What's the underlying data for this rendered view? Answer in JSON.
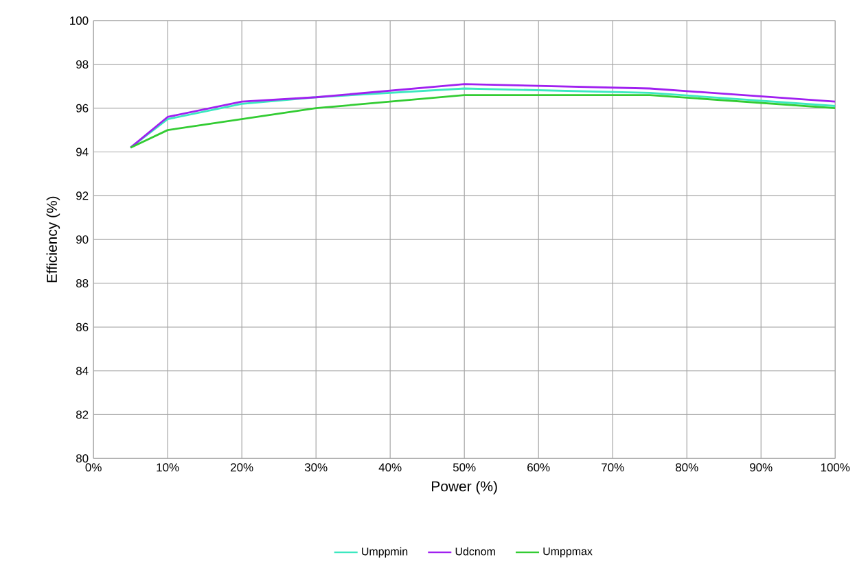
{
  "chart_data": {
    "type": "line",
    "xlabel": "Power (%)",
    "ylabel": "Efficiency (%)",
    "x": [
      5,
      10,
      20,
      30,
      50,
      75,
      100
    ],
    "series": [
      {
        "name": "Umppmin",
        "color": "#3ce8c0",
        "values": [
          94.2,
          95.5,
          96.2,
          96.5,
          96.9,
          96.7,
          96.1
        ]
      },
      {
        "name": "Udcnom",
        "color": "#a020f0",
        "values": [
          94.2,
          95.6,
          96.3,
          96.5,
          97.1,
          96.9,
          96.3
        ]
      },
      {
        "name": "Umppmax",
        "color": "#33cc33",
        "values": [
          94.2,
          95.0,
          95.5,
          96.0,
          96.6,
          96.6,
          96.0
        ]
      }
    ],
    "xlim": [
      0,
      100
    ],
    "xticks": [
      {
        "value": 0,
        "label": "0%"
      },
      {
        "value": 10,
        "label": "10%"
      },
      {
        "value": 20,
        "label": "20%"
      },
      {
        "value": 30,
        "label": "30%"
      },
      {
        "value": 40,
        "label": "40%"
      },
      {
        "value": 50,
        "label": "50%"
      },
      {
        "value": 60,
        "label": "60%"
      },
      {
        "value": 70,
        "label": "70%"
      },
      {
        "value": 80,
        "label": "80%"
      },
      {
        "value": 90,
        "label": "90%"
      },
      {
        "value": 100,
        "label": "100%"
      }
    ],
    "ylim": [
      80,
      100
    ],
    "yticks": [
      80,
      82,
      84,
      86,
      88,
      90,
      92,
      94,
      96,
      98,
      100
    ],
    "grid": true,
    "legend": "bottom",
    "marker": "none",
    "line_style": "solid"
  }
}
